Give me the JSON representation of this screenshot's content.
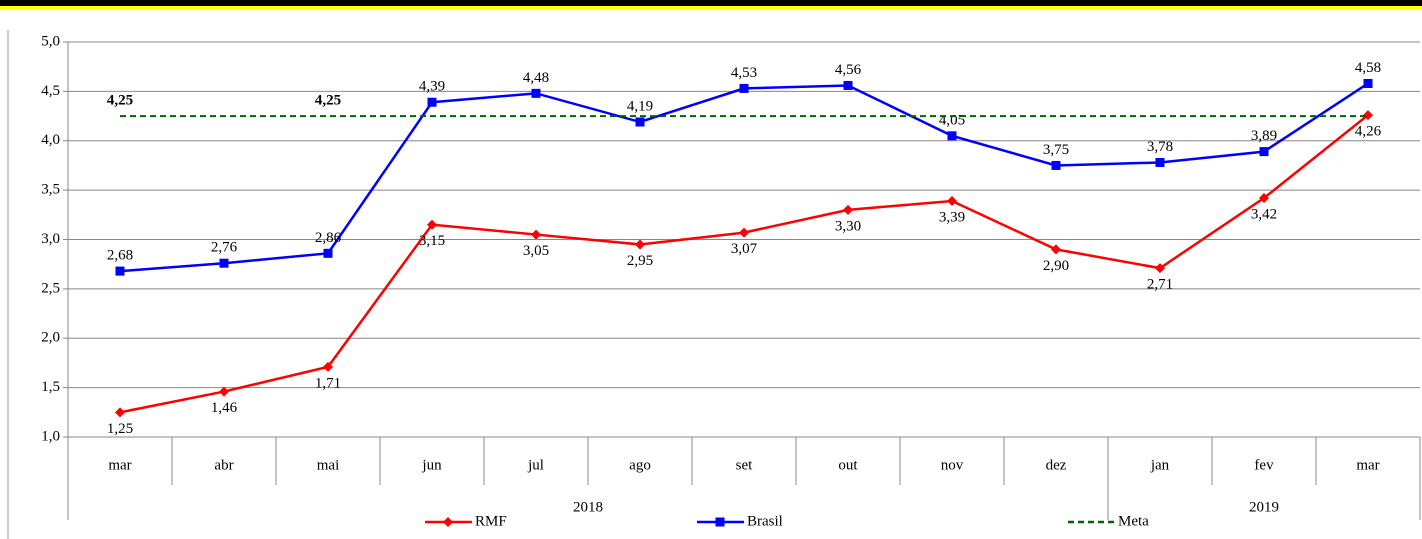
{
  "chart_data": {
    "type": "line",
    "categories": [
      "mar",
      "abr",
      "mai",
      "jun",
      "jul",
      "ago",
      "set",
      "out",
      "nov",
      "dez",
      "jan",
      "fev",
      "mar"
    ],
    "groups": [
      {
        "label": "2018",
        "count": 10
      },
      {
        "label": "2019",
        "count": 3
      }
    ],
    "series": [
      {
        "name": "RMF",
        "color": "#ff0000",
        "marker": "diamond",
        "label_side": "below",
        "values": [
          1.25,
          1.46,
          1.71,
          3.15,
          3.05,
          2.95,
          3.07,
          3.3,
          3.39,
          2.9,
          2.71,
          3.42,
          4.26
        ],
        "value_labels": [
          "1,25",
          "1,46",
          "1,71",
          "3,15",
          "3,05",
          "2,95",
          "3,07",
          "3,30",
          "3,39",
          "2,90",
          "2,71",
          "3,42",
          "4,26"
        ]
      },
      {
        "name": "Brasil",
        "color": "#0000ff",
        "marker": "square",
        "label_side": "above",
        "values": [
          2.68,
          2.76,
          2.86,
          4.39,
          4.48,
          4.19,
          4.53,
          4.56,
          4.05,
          3.75,
          3.78,
          3.89,
          4.58
        ],
        "value_labels": [
          "2,68",
          "2,76",
          "2,86",
          "4,39",
          "4,48",
          "4,19",
          "4,53",
          "4,56",
          "4,05",
          "3,75",
          "3,78",
          "3,89",
          "4,58"
        ]
      },
      {
        "name": "Meta",
        "color": "#006400",
        "dashed": true,
        "label_color": "#4f6228",
        "label_side": "above",
        "values": [
          4.25,
          4.25,
          4.25,
          4.25,
          4.25,
          4.25,
          4.25,
          4.25,
          4.25,
          4.25,
          4.25,
          4.25,
          4.25
        ],
        "value_labels": [
          "4,25",
          null,
          "4,25",
          null,
          null,
          null,
          null,
          null,
          null,
          null,
          null,
          null,
          null
        ]
      }
    ],
    "ylim": [
      1,
      5
    ],
    "yticks": [
      {
        "value": 1,
        "label": "1,0"
      },
      {
        "value": 1.5,
        "label": "1,5"
      },
      {
        "value": 2,
        "label": "2,0"
      },
      {
        "value": 2.5,
        "label": "2,5"
      },
      {
        "value": 3,
        "label": "3,0"
      },
      {
        "value": 3.5,
        "label": "3,5"
      },
      {
        "value": 4,
        "label": "4,0"
      },
      {
        "value": 4.5,
        "label": "4,5"
      },
      {
        "value": 5,
        "label": "5,0"
      }
    ],
    "grid": true
  }
}
